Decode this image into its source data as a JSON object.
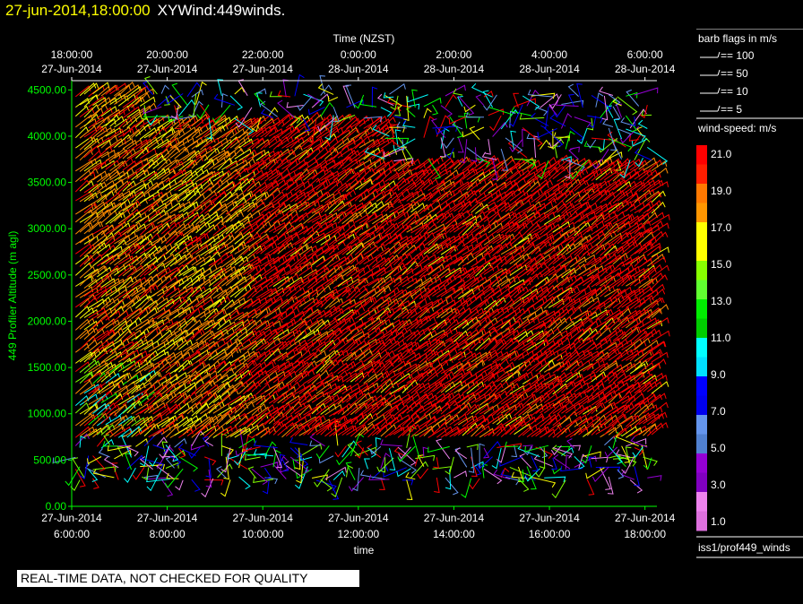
{
  "header": {
    "datetime": "27-jun-2014,18:00:00",
    "product": "XYWind:449winds."
  },
  "notice": "REAL-TIME DATA, NOT CHECKED FOR QUALITY",
  "footer_id": "iss1/prof449_winds",
  "barb_legend": {
    "title": "barb flags in m/s",
    "entries": [
      "== 100",
      "== 50",
      "== 10",
      "== 5"
    ]
  },
  "colorbar": {
    "title": "wind-speed: m/s",
    "labels": [
      "21.0",
      "19.0",
      "17.0",
      "15.0",
      "13.0",
      "11.0",
      "9.0",
      "7.0",
      "5.0",
      "3.0",
      "1.0"
    ],
    "colors": [
      "#ff0000",
      "#ff1e00",
      "#ff7800",
      "#ff9600",
      "#ffff00",
      "#ffff00",
      "#88ff00",
      "#60ff30",
      "#00ee00",
      "#00cc00",
      "#00ffff",
      "#00e0ff",
      "#0000ff",
      "#0000ee",
      "#6495ed",
      "#5080d0",
      "#9400d3",
      "#8000c0",
      "#ee82ee",
      "#dd70dd"
    ]
  },
  "chart_data": {
    "type": "scatter",
    "title": "XYWind:449winds.",
    "ylabel": "449 Profiler Altitude (m agl)",
    "xlabel": "time",
    "top_axis_label": "Time (NZST)",
    "ylim": [
      0,
      4600
    ],
    "y_ticks": [
      "0.00",
      "500.00",
      "1000.00",
      "1500.00",
      "2000.00",
      "2500.00",
      "3000.00",
      "3500.00",
      "4000.00",
      "4500.00"
    ],
    "x_ticks_bottom": [
      {
        "date": "27-Jun-2014",
        "time": "6:00:00"
      },
      {
        "date": "27-Jun-2014",
        "time": "8:00:00"
      },
      {
        "date": "27-Jun-2014",
        "time": "10:00:00"
      },
      {
        "date": "27-Jun-2014",
        "time": "12:00:00"
      },
      {
        "date": "27-Jun-2014",
        "time": "14:00:00"
      },
      {
        "date": "27-Jun-2014",
        "time": "16:00:00"
      },
      {
        "date": "27-Jun-2014",
        "time": "18:00:00"
      }
    ],
    "x_ticks_top": [
      {
        "time": "18:00:00",
        "date": "27-Jun-2014"
      },
      {
        "time": "20:00:00",
        "date": "27-Jun-2014"
      },
      {
        "time": "22:00:00",
        "date": "27-Jun-2014"
      },
      {
        "time": "0:00:00",
        "date": "28-Jun-2014"
      },
      {
        "time": "2:00:00",
        "date": "28-Jun-2014"
      },
      {
        "time": "4:00:00",
        "date": "28-Jun-2014"
      },
      {
        "time": "6:00:00",
        "date": "28-Jun-2014"
      }
    ],
    "xlim_hours_utc": [
      6,
      18.25
    ],
    "grid": false,
    "legend_position": "right"
  }
}
